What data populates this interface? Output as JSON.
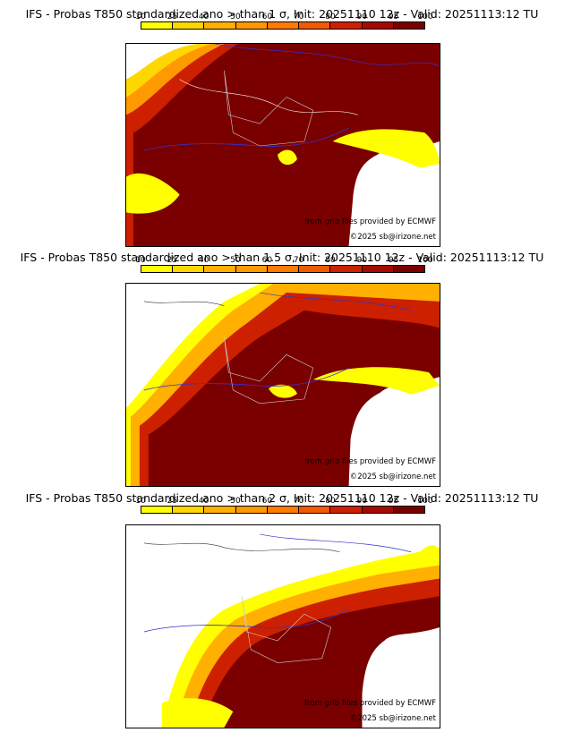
{
  "colorbar": {
    "labels": [
      "10",
      "25",
      "40",
      "50",
      "60",
      "70",
      "80",
      "90",
      "95",
      "100"
    ],
    "colors": [
      "#ffff00",
      "#ffd700",
      "#ffb000",
      "#ff9900",
      "#ff7a00",
      "#f05a00",
      "#cc2000",
      "#a50a00",
      "#7a0000"
    ]
  },
  "panels": [
    {
      "title": "IFS - Probas T850  standardized ano > than 1 σ, Init: 20251110 12z - Valid: 20251113:12 TU",
      "credit_source": "from grib files provided by ECMWF",
      "credit_copyright": "©2025 sb@irizone.net"
    },
    {
      "title": "IFS - Probas T850  standardized ano > than 1.5 σ, Init: 20251110 12z - Valid: 20251113:12 TU",
      "credit_source": "from grib files provided by ECMWF",
      "credit_copyright": "©2025 sb@irizone.net"
    },
    {
      "title": "IFS - Probas T850  standardized ano > than 2 σ, Init: 20251110 12z - Valid: 20251113:12 TU",
      "credit_source": "from grib files provided by ECMWF",
      "credit_copyright": "©2025 sb@irizone.net"
    }
  ]
}
